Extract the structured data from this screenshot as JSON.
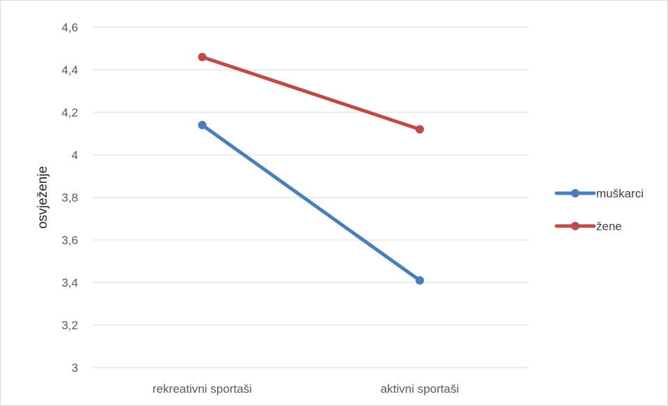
{
  "chart_data": {
    "type": "line",
    "title": "",
    "xlabel": "",
    "ylabel": "osvježenje",
    "categories": [
      "rekreativni sportaši",
      "aktivni sportaši"
    ],
    "ylim": [
      3,
      4.6
    ],
    "yticks": [
      "3",
      "3,2",
      "3,4",
      "3,6",
      "3,8",
      "4",
      "4,2",
      "4,4",
      "4,6"
    ],
    "grid": true,
    "legend_position": "right",
    "series": [
      {
        "name": "muškarci",
        "values": [
          4.14,
          3.41
        ],
        "color": "#4a7ebb"
      },
      {
        "name": "žene",
        "values": [
          4.46,
          4.12
        ],
        "color": "#be4b48"
      }
    ]
  }
}
